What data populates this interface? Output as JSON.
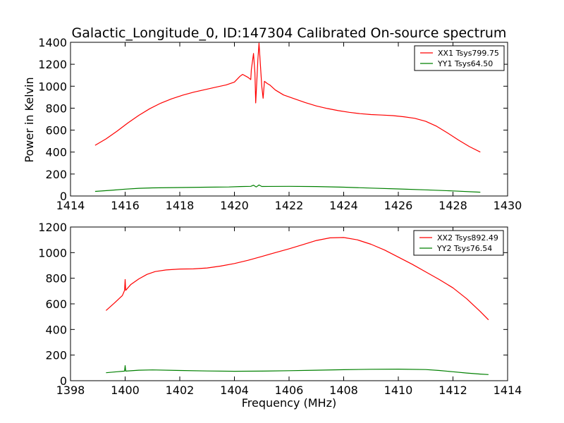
{
  "figure": {
    "title": "Galactic_Longitude_0, ID:147304 Calibrated On-source spectrum",
    "shared_ylabel": "Power in Kelvin",
    "shared_xlabel": "Frequency (MHz)"
  },
  "chart_data": [
    {
      "type": "line",
      "panel": "top",
      "xlabel": "",
      "ylabel": "Power in Kelvin",
      "xlim": [
        1414,
        1430
      ],
      "ylim": [
        0,
        1400
      ],
      "xticks": [
        1414,
        1416,
        1418,
        1420,
        1422,
        1424,
        1426,
        1428,
        1430
      ],
      "yticks": [
        0,
        200,
        400,
        600,
        800,
        1000,
        1200,
        1400
      ],
      "legend_position": "top-right",
      "series": [
        {
          "name": "XX1 Tsys799.75",
          "color": "#ff0000",
          "points": [
            [
              1414.9,
              462
            ],
            [
              1415.3,
              520
            ],
            [
              1415.7,
              590
            ],
            [
              1416.1,
              665
            ],
            [
              1416.5,
              735
            ],
            [
              1416.9,
              795
            ],
            [
              1417.3,
              845
            ],
            [
              1417.7,
              885
            ],
            [
              1418.1,
              918
            ],
            [
              1418.5,
              945
            ],
            [
              1418.9,
              968
            ],
            [
              1419.3,
              990
            ],
            [
              1419.7,
              1012
            ],
            [
              1420.0,
              1038
            ],
            [
              1420.2,
              1090
            ],
            [
              1420.3,
              1108
            ],
            [
              1420.5,
              1080
            ],
            [
              1420.6,
              1060
            ],
            [
              1420.62,
              1150
            ],
            [
              1420.7,
              1298
            ],
            [
              1420.75,
              1120
            ],
            [
              1420.78,
              848
            ],
            [
              1420.82,
              1050
            ],
            [
              1420.86,
              1245
            ],
            [
              1420.9,
              1392
            ],
            [
              1420.95,
              1200
            ],
            [
              1421.0,
              1000
            ],
            [
              1421.05,
              890
            ],
            [
              1421.1,
              1045
            ],
            [
              1421.2,
              1025
            ],
            [
              1421.3,
              1010
            ],
            [
              1421.5,
              965
            ],
            [
              1421.8,
              920
            ],
            [
              1422.2,
              885
            ],
            [
              1422.6,
              850
            ],
            [
              1423.0,
              820
            ],
            [
              1423.4,
              797
            ],
            [
              1423.8,
              778
            ],
            [
              1424.2,
              762
            ],
            [
              1424.6,
              750
            ],
            [
              1425.0,
              742
            ],
            [
              1425.4,
              737
            ],
            [
              1425.8,
              732
            ],
            [
              1426.2,
              722
            ],
            [
              1426.6,
              708
            ],
            [
              1427.0,
              680
            ],
            [
              1427.4,
              635
            ],
            [
              1427.8,
              575
            ],
            [
              1428.2,
              510
            ],
            [
              1428.6,
              450
            ],
            [
              1429.0,
              400
            ]
          ]
        },
        {
          "name": "YY1 Tsys64.50",
          "color": "#008000",
          "points": [
            [
              1414.9,
              42
            ],
            [
              1415.5,
              52
            ],
            [
              1416.0,
              62
            ],
            [
              1416.5,
              70
            ],
            [
              1417.0,
              74
            ],
            [
              1418.0,
              77
            ],
            [
              1419.0,
              80
            ],
            [
              1419.8,
              82
            ],
            [
              1420.2,
              86
            ],
            [
              1420.6,
              88
            ],
            [
              1420.7,
              98
            ],
            [
              1420.8,
              82
            ],
            [
              1420.9,
              100
            ],
            [
              1421.0,
              87
            ],
            [
              1422.0,
              88
            ],
            [
              1423.0,
              86
            ],
            [
              1424.0,
              80
            ],
            [
              1425.0,
              72
            ],
            [
              1426.0,
              64
            ],
            [
              1427.0,
              56
            ],
            [
              1428.0,
              46
            ],
            [
              1429.0,
              35
            ]
          ]
        }
      ]
    },
    {
      "type": "line",
      "panel": "bottom",
      "xlabel": "Frequency (MHz)",
      "ylabel": "",
      "xlim": [
        1398,
        1414
      ],
      "ylim": [
        0,
        1200
      ],
      "xticks": [
        1398,
        1400,
        1402,
        1404,
        1406,
        1408,
        1410,
        1412,
        1414
      ],
      "yticks": [
        0,
        200,
        400,
        600,
        800,
        1000,
        1200
      ],
      "legend_position": "top-right",
      "series": [
        {
          "name": "XX2 Tsys892.49",
          "color": "#ff0000",
          "points": [
            [
              1399.3,
              548
            ],
            [
              1399.6,
              605
            ],
            [
              1399.9,
              665
            ],
            [
              1399.98,
              705
            ],
            [
              1400.0,
              790
            ],
            [
              1400.02,
              705
            ],
            [
              1400.2,
              750
            ],
            [
              1400.5,
              795
            ],
            [
              1400.8,
              830
            ],
            [
              1401.1,
              852
            ],
            [
              1401.5,
              865
            ],
            [
              1402.0,
              872
            ],
            [
              1402.5,
              873
            ],
            [
              1403.0,
              880
            ],
            [
              1403.5,
              895
            ],
            [
              1404.0,
              915
            ],
            [
              1404.5,
              940
            ],
            [
              1405.0,
              970
            ],
            [
              1405.5,
              1000
            ],
            [
              1406.0,
              1030
            ],
            [
              1406.5,
              1062
            ],
            [
              1407.0,
              1095
            ],
            [
              1407.5,
              1115
            ],
            [
              1408.0,
              1118
            ],
            [
              1408.5,
              1100
            ],
            [
              1409.0,
              1065
            ],
            [
              1409.5,
              1020
            ],
            [
              1410.0,
              965
            ],
            [
              1410.5,
              910
            ],
            [
              1411.0,
              850
            ],
            [
              1411.5,
              790
            ],
            [
              1412.0,
              725
            ],
            [
              1412.5,
              640
            ],
            [
              1413.0,
              540
            ],
            [
              1413.3,
              475
            ]
          ]
        },
        {
          "name": "YY2 Tsys76.54",
          "color": "#008000",
          "points": [
            [
              1399.3,
              62
            ],
            [
              1399.7,
              70
            ],
            [
              1399.98,
              75
            ],
            [
              1400.0,
              118
            ],
            [
              1400.02,
              75
            ],
            [
              1400.5,
              82
            ],
            [
              1401.0,
              84
            ],
            [
              1402.0,
              80
            ],
            [
              1403.0,
              76
            ],
            [
              1404.0,
              74
            ],
            [
              1405.0,
              75
            ],
            [
              1406.0,
              78
            ],
            [
              1407.0,
              82
            ],
            [
              1408.0,
              86
            ],
            [
              1409.0,
              89
            ],
            [
              1410.0,
              90
            ],
            [
              1411.0,
              87
            ],
            [
              1411.5,
              80
            ],
            [
              1412.0,
              70
            ],
            [
              1412.5,
              60
            ],
            [
              1413.0,
              52
            ],
            [
              1413.3,
              48
            ]
          ]
        }
      ]
    }
  ]
}
